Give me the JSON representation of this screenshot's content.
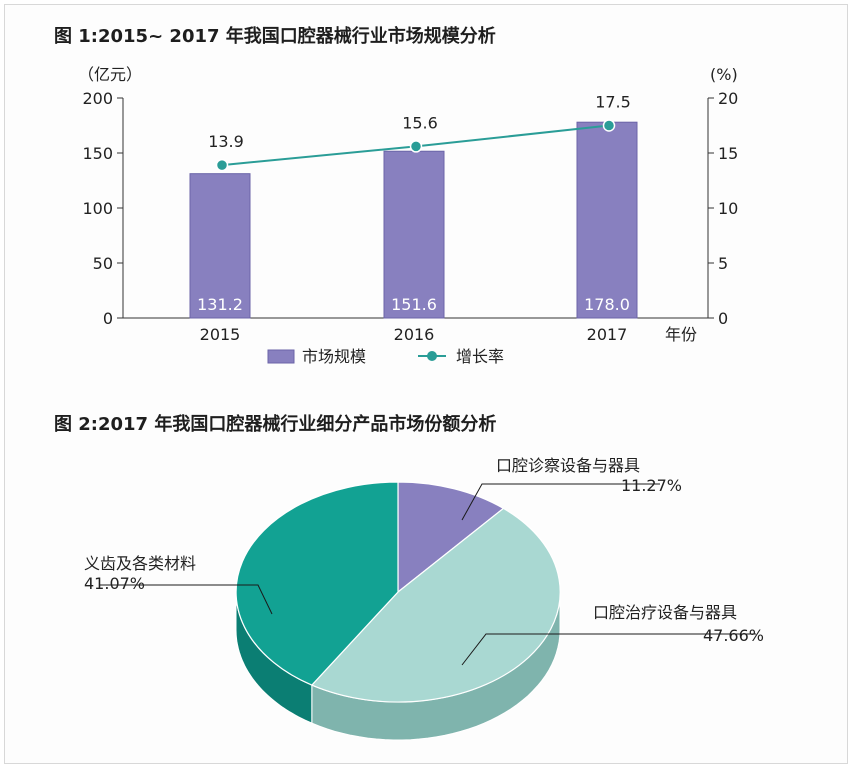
{
  "colors": {
    "bar": "#8880bf",
    "bar_edge": "#6b64a8",
    "line": "#2a9d97",
    "pie_purple": "#8880bf",
    "pie_light": "#a9d8d2",
    "pie_teal": "#12a293"
  },
  "chart_data": [
    {
      "type": "bar",
      "title": "图 1:2015~ 2017 年我国口腔器械行业市场规模分析",
      "categories": [
        "2015",
        "2016",
        "2017"
      ],
      "xlabel": "年份",
      "ylabel": "（亿元）",
      "y2label": "(%)",
      "ylim": [
        0,
        200
      ],
      "y2lim": [
        0,
        20
      ],
      "yticks": [
        "0",
        "50",
        "100",
        "150",
        "200"
      ],
      "y2ticks": [
        "0",
        "5",
        "10",
        "15",
        "20"
      ],
      "grid": false,
      "legend": "bottom",
      "series": [
        {
          "name": "市场规模",
          "type": "bar",
          "axis": "left",
          "values": [
            131.2,
            151.6,
            178.0
          ],
          "labels": [
            "131.2",
            "151.6",
            "178.0"
          ]
        },
        {
          "name": "增长率",
          "type": "line",
          "axis": "right",
          "values": [
            13.9,
            15.6,
            17.5
          ],
          "labels": [
            "13.9",
            "15.6",
            "17.5"
          ]
        }
      ]
    },
    {
      "type": "pie",
      "title": "图 2:2017 年我国口腔器械行业细分产品市场份额分析",
      "slices": [
        {
          "label": "口腔诊察设备与器具",
          "value": 11.27,
          "text": "11.27%"
        },
        {
          "label": "口腔治疗设备与器具",
          "value": 47.66,
          "text": "47.66%"
        },
        {
          "label": "义齿及各类材料",
          "value": 41.07,
          "text": "41.07%"
        }
      ]
    }
  ]
}
